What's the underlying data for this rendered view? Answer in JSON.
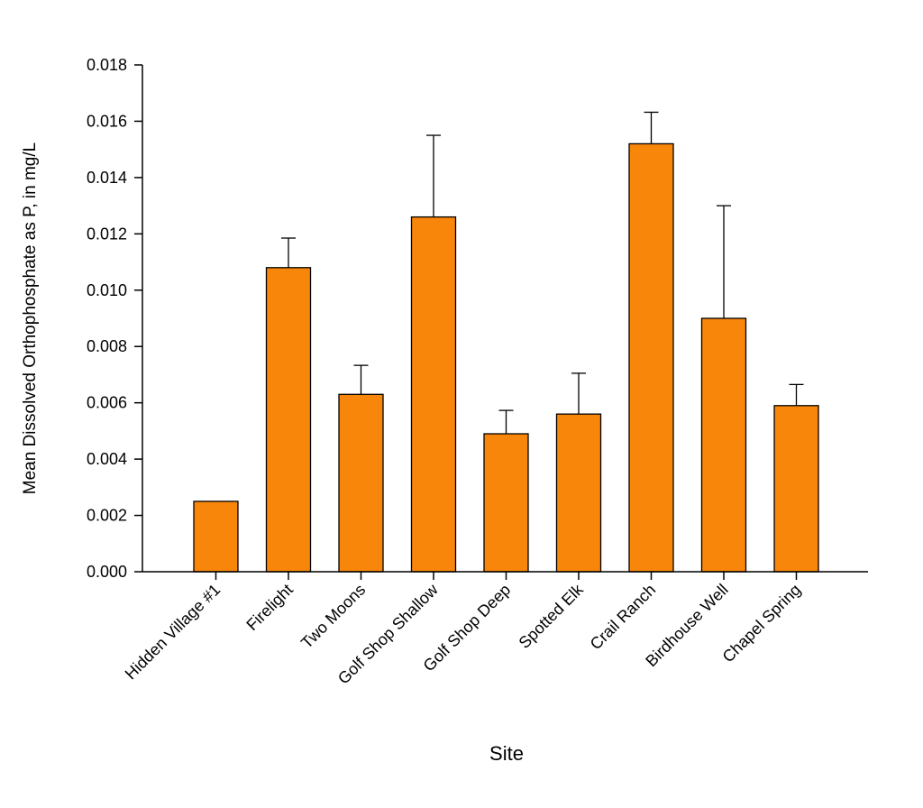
{
  "chart_data": {
    "type": "bar",
    "xlabel": "Site",
    "ylabel": "Mean Dissolved Orthophosphate as P, in mg/L",
    "ylim": [
      0,
      0.018
    ],
    "yticks": [
      "0.000",
      "0.002",
      "0.004",
      "0.006",
      "0.008",
      "0.010",
      "0.012",
      "0.014",
      "0.016",
      "0.018"
    ],
    "categories": [
      "Hidden Village #1",
      "Firelight",
      "Two Moons",
      "Golf Shop Shallow",
      "Golf Shop Deep",
      "Spotted Elk",
      "Crail Ranch",
      "Birdhouse Well",
      "Chapel Spring"
    ],
    "values": [
      0.0025,
      0.0108,
      0.0063,
      0.0126,
      0.0049,
      0.0056,
      0.0152,
      0.009,
      0.0059
    ],
    "error_upper": [
      null,
      0.00105,
      0.00103,
      0.0029,
      0.00083,
      0.00145,
      0.00112,
      0.004,
      0.00075
    ],
    "grid": false,
    "legend": false,
    "bar_color": "#F8860A",
    "edge_color": "#000000"
  }
}
